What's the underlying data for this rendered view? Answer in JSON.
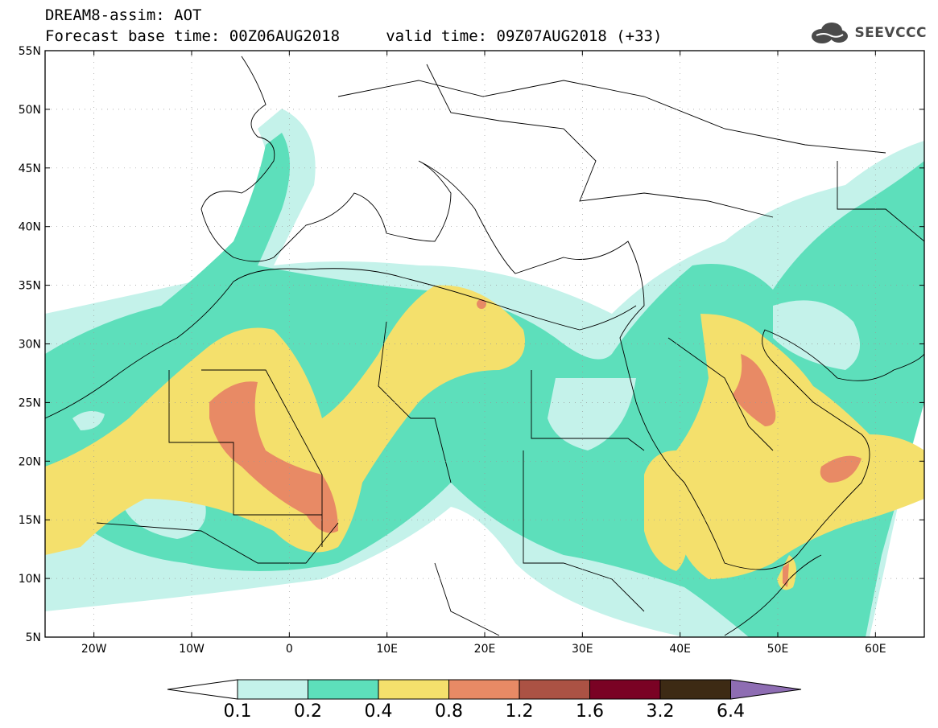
{
  "title_line1": "DREAM8-assim: AOT",
  "title_line2": "Forecast base time: 00Z06AUG2018     valid time: 09Z07AUG2018 (+33)",
  "logo_text": "SEEVCCC",
  "map": {
    "lon_range": [
      -25,
      65
    ],
    "lat_range": [
      5,
      55
    ],
    "lon_ticks": [
      "20W",
      "10W",
      "0",
      "10E",
      "20E",
      "30E",
      "40E",
      "50E",
      "60E"
    ],
    "lat_ticks": [
      "55N",
      "50N",
      "45N",
      "40N",
      "35N",
      "30N",
      "25N",
      "20N",
      "15N",
      "10N",
      "5N"
    ],
    "grid": "dotted"
  },
  "colorbar": {
    "levels": [
      "0.1",
      "0.2",
      "0.4",
      "0.8",
      "1.2",
      "1.6",
      "3.2",
      "6.4"
    ],
    "colors": [
      "#c4f2ea",
      "#5ddfbb",
      "#f4e06c",
      "#e88a65",
      "#ab5244",
      "#7a0224",
      "#3d2a14",
      "#8e6db3"
    ]
  }
}
